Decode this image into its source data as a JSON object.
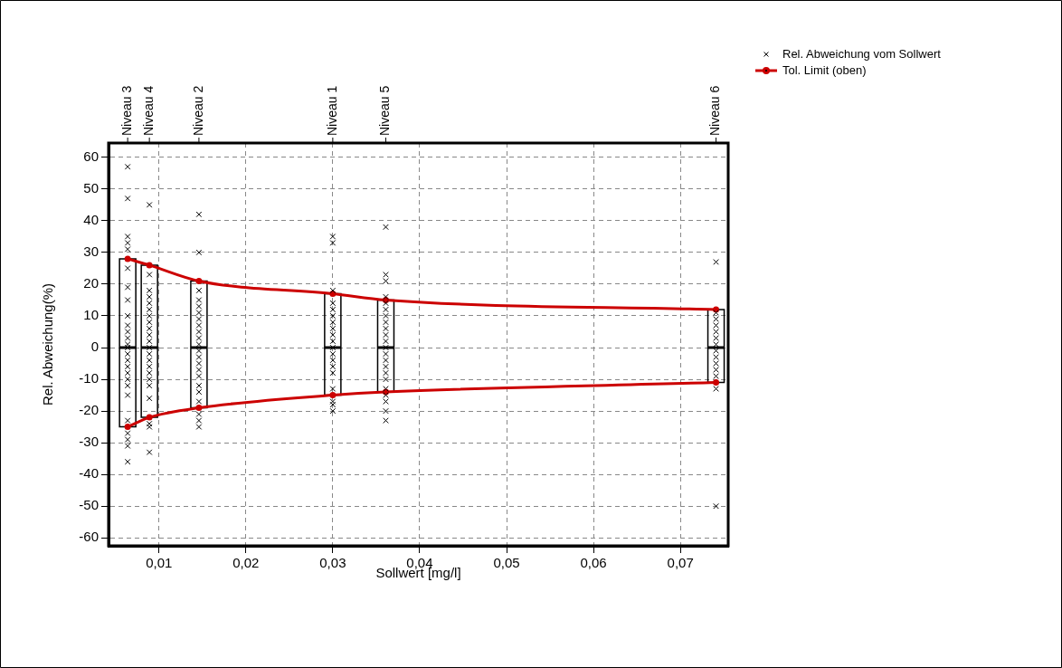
{
  "chart_data": {
    "type": "scatter",
    "xlabel": "Sollwert [mg/l]",
    "ylabel": "Rel. Abweichung(%)",
    "xlim": [
      0.0042,
      0.0755
    ],
    "xticks": [
      {
        "value": 0.01,
        "label": "0,01"
      },
      {
        "value": 0.02,
        "label": "0,02"
      },
      {
        "value": 0.03,
        "label": "0,03"
      },
      {
        "value": 0.04,
        "label": "0,04"
      },
      {
        "value": 0.05,
        "label": "0,05"
      },
      {
        "value": 0.06,
        "label": "0,06"
      },
      {
        "value": 0.07,
        "label": "0,07"
      }
    ],
    "annotations": [
      {
        "text": "Niveau 3",
        "x": 0.0064
      },
      {
        "text": "Niveau 4",
        "x": 0.0089
      },
      {
        "text": "Niveau 2",
        "x": 0.0146
      },
      {
        "text": "Niveau 1",
        "x": 0.03
      },
      {
        "text": "Niveau 5",
        "x": 0.0361
      },
      {
        "text": "Niveau 6",
        "x": 0.0741
      }
    ],
    "ylim": [
      -62.5,
      64.5
    ],
    "yticks": [
      -60,
      -50,
      -40,
      -30,
      -20,
      -10,
      0,
      10,
      20,
      30,
      40,
      50,
      60
    ],
    "grid": true,
    "legend": "top right",
    "series": [
      {
        "name": "Rel. Abweichung vom Sollwert",
        "color": "#000000",
        "marker": "cross",
        "x": [
          0.0064,
          0.0064,
          0.0064,
          0.0064,
          0.0064,
          0.0064,
          0.0064,
          0.0064,
          0.0064,
          0.0064,
          0.0064,
          0.0064,
          0.0064,
          0.0064,
          0.0064,
          0.0064,
          0.0064,
          0.0064,
          0.0064,
          0.0064,
          0.0064,
          0.0064,
          0.0064,
          0.0064,
          0.0064,
          0.0064,
          0.0089,
          0.0089,
          0.0089,
          0.0089,
          0.0089,
          0.0089,
          0.0089,
          0.0089,
          0.0089,
          0.0089,
          0.0089,
          0.0089,
          0.0089,
          0.0089,
          0.0089,
          0.0089,
          0.0089,
          0.0089,
          0.0089,
          0.0089,
          0.0089,
          0.0089,
          0.0146,
          0.0146,
          0.0146,
          0.0146,
          0.0146,
          0.0146,
          0.0146,
          0.0146,
          0.0146,
          0.0146,
          0.0146,
          0.0146,
          0.0146,
          0.0146,
          0.0146,
          0.0146,
          0.0146,
          0.0146,
          0.0146,
          0.0146,
          0.0146,
          0.0146,
          0.03,
          0.03,
          0.03,
          0.03,
          0.03,
          0.03,
          0.03,
          0.03,
          0.03,
          0.03,
          0.03,
          0.03,
          0.03,
          0.03,
          0.03,
          0.03,
          0.03,
          0.03,
          0.03,
          0.0361,
          0.0361,
          0.0361,
          0.0361,
          0.0361,
          0.0361,
          0.0361,
          0.0361,
          0.0361,
          0.0361,
          0.0361,
          0.0361,
          0.0361,
          0.0361,
          0.0361,
          0.0361,
          0.0361,
          0.0361,
          0.0361,
          0.0361,
          0.0361,
          0.0361,
          0.0741,
          0.0741,
          0.0741,
          0.0741,
          0.0741,
          0.0741,
          0.0741,
          0.0741,
          0.0741,
          0.0741,
          0.0741,
          0.0741,
          0.0741,
          0.0741
        ],
        "values": [
          57,
          47,
          35,
          33,
          31,
          25,
          19,
          15,
          10,
          7,
          5,
          3,
          1,
          0,
          -2,
          -4,
          -6,
          -8,
          -10,
          -12,
          -15,
          -23,
          -27,
          -29,
          -31,
          -36,
          45,
          23,
          18,
          16,
          14,
          12,
          10,
          8,
          6,
          4,
          2,
          0,
          -2,
          -4,
          -6,
          -8,
          -10,
          -12,
          -16,
          -24,
          -25,
          -33,
          42,
          30,
          18,
          15,
          13,
          11,
          9,
          7,
          5,
          3,
          1,
          -1,
          -3,
          -5,
          -7,
          -9,
          -12,
          -14,
          -17,
          -21,
          -23,
          -25,
          35,
          33,
          18,
          14,
          12,
          10,
          8,
          6,
          4,
          2,
          0,
          -2,
          -4,
          -6,
          -8,
          -13,
          -17,
          -18,
          -20,
          38,
          23,
          21,
          16,
          14,
          12,
          10,
          8,
          6,
          4,
          2,
          0,
          -2,
          -4,
          -6,
          -8,
          -10,
          -13,
          -15,
          -17,
          -20,
          -23,
          27,
          11,
          9,
          7,
          5,
          3,
          1,
          -1,
          -3,
          -5,
          -7,
          -9,
          -13,
          -50
        ]
      },
      {
        "name": "Tol. Limit (oben)",
        "type": "line",
        "color": "#cc0000",
        "marker": "circle",
        "line_style": "solid",
        "x": [
          0.0064,
          0.0089,
          0.0146,
          0.03,
          0.0361,
          0.0741
        ],
        "values": [
          28,
          26,
          21,
          17,
          15,
          12
        ]
      },
      {
        "type": "line",
        "color": "#cc0000",
        "marker": "circle",
        "line_style": "solid",
        "x": [
          0.0064,
          0.0089,
          0.0146,
          0.03,
          0.0361,
          0.0741
        ],
        "values": [
          -25,
          -22,
          -19,
          -15,
          -14,
          -11
        ]
      },
      {
        "type": "box",
        "color": "#000000",
        "x": [
          0.0064,
          0.0089,
          0.0146,
          0.03,
          0.0361,
          0.0741
        ],
        "boxes": [
          {
            "low": -25,
            "q1": -25,
            "median": 0,
            "q3": 28,
            "high": 28
          },
          {
            "low": -22,
            "q1": -22,
            "median": 0,
            "q3": 26,
            "high": 26
          },
          {
            "low": -19,
            "q1": -19,
            "median": 0,
            "q3": 21,
            "high": 21
          },
          {
            "low": -15,
            "q1": -15,
            "median": 0,
            "q3": 17,
            "high": 17
          },
          {
            "low": -14,
            "q1": -14,
            "median": 0,
            "q3": 15,
            "high": 15
          },
          {
            "low": -11,
            "q1": -11,
            "median": 0,
            "q3": 12,
            "high": 12
          }
        ]
      }
    ]
  }
}
